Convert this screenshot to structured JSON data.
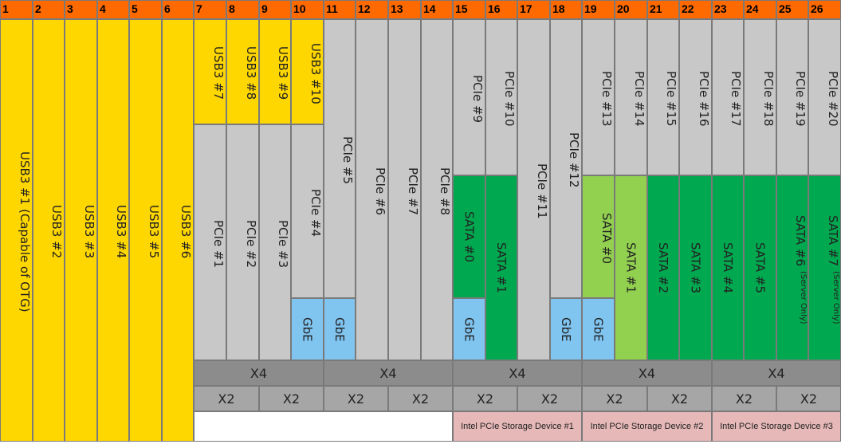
{
  "lanes": [
    "1",
    "2",
    "3",
    "4",
    "5",
    "6",
    "7",
    "8",
    "9",
    "10",
    "11",
    "12",
    "13",
    "14",
    "15",
    "16",
    "17",
    "18",
    "19",
    "20",
    "21",
    "22",
    "23",
    "24",
    "25",
    "26"
  ],
  "usb": [
    "USB3 #1 (Capable of OTG)",
    "USB3 #2",
    "USB3 #3",
    "USB3 #4",
    "USB3 #5",
    "USB3 #6",
    "USB3 #7",
    "USB3 #8",
    "USB3 #9",
    "USB3 #10"
  ],
  "pcie_low": [
    "PCIe #1",
    "PCIe #2",
    "PCIe #3",
    "PCIe #4"
  ],
  "pcie": [
    "PCIe #5",
    "PCIe #6",
    "PCIe #7",
    "PCIe #8",
    "PCIe #9",
    "PCIe #10",
    "PCIe #11",
    "PCIe #12",
    "PCIe #13",
    "PCIe #14",
    "PCIe #15",
    "PCIe #16",
    "PCIe #17",
    "PCIe #18",
    "PCIe #19",
    "PCIe #20"
  ],
  "sata": [
    "SATA #0",
    "SATA #1",
    "SATA #0",
    "SATA #1",
    "SATA #2",
    "SATA #3",
    "SATA #4",
    "SATA #5"
  ],
  "sata_server": [
    {
      "label": "SATA #6",
      "note": "(Server Only)"
    },
    {
      "label": "SATA #7",
      "note": "(Server Only)"
    }
  ],
  "gbe": "GbE",
  "x4": "X4",
  "x2": "X2",
  "storage": [
    "Intel PCIe Storage Device #1",
    "Intel PCIe Storage Device #2",
    "Intel PCIe Storage Device #3"
  ],
  "colors": {
    "header": "#ff6a00",
    "usb": "#ffd700",
    "pcie": "#c8c8c8",
    "sata_dark": "#00a84f",
    "sata_light": "#92d050",
    "gbe": "#80c4f0",
    "x4": "#8c8c8c",
    "x2": "#a6a6a6",
    "storage": "#e6b8b8"
  }
}
